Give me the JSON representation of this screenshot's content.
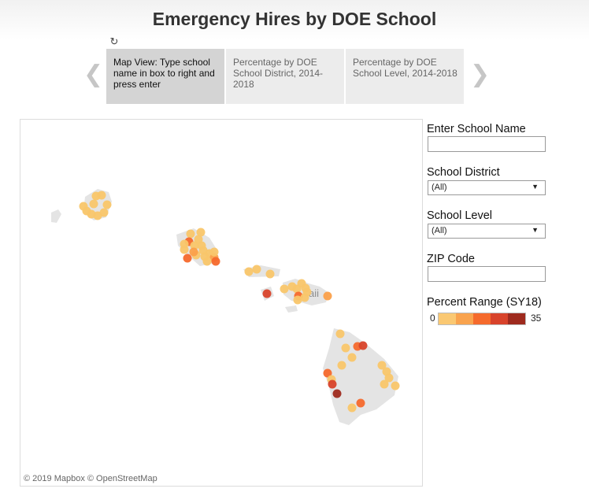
{
  "page": {
    "title": "Emergency Hires by DOE School"
  },
  "tabs": [
    {
      "label": "Map View: Type school name in box to right and press enter",
      "active": true
    },
    {
      "label": "Percentage by DOE School District, 2014-2018",
      "active": false
    },
    {
      "label": "Percentage by DOE School Level, 2014-2018",
      "active": false
    }
  ],
  "map": {
    "attribution": "© 2019 Mapbox  © OpenStreetMap",
    "label_fragment": "aii",
    "land_color": "#e4e4e4",
    "marker_colors": [
      "#f9c66a",
      "#fba04a",
      "#f5692c",
      "#d8432b",
      "#9e2a1e"
    ]
  },
  "filters": {
    "school_name": {
      "label": "Enter School Name",
      "value": ""
    },
    "school_district": {
      "label": "School District",
      "value": "(All)"
    },
    "school_level": {
      "label": "School Level",
      "value": "(All)"
    },
    "zip_code": {
      "label": "ZIP Code",
      "value": ""
    }
  },
  "legend": {
    "title": "Percent Range (SY18)",
    "min": "0",
    "max": "35",
    "colors": [
      "#fac872",
      "#f9a34e",
      "#f56a2c",
      "#d8432b",
      "#9e2a1e"
    ]
  }
}
